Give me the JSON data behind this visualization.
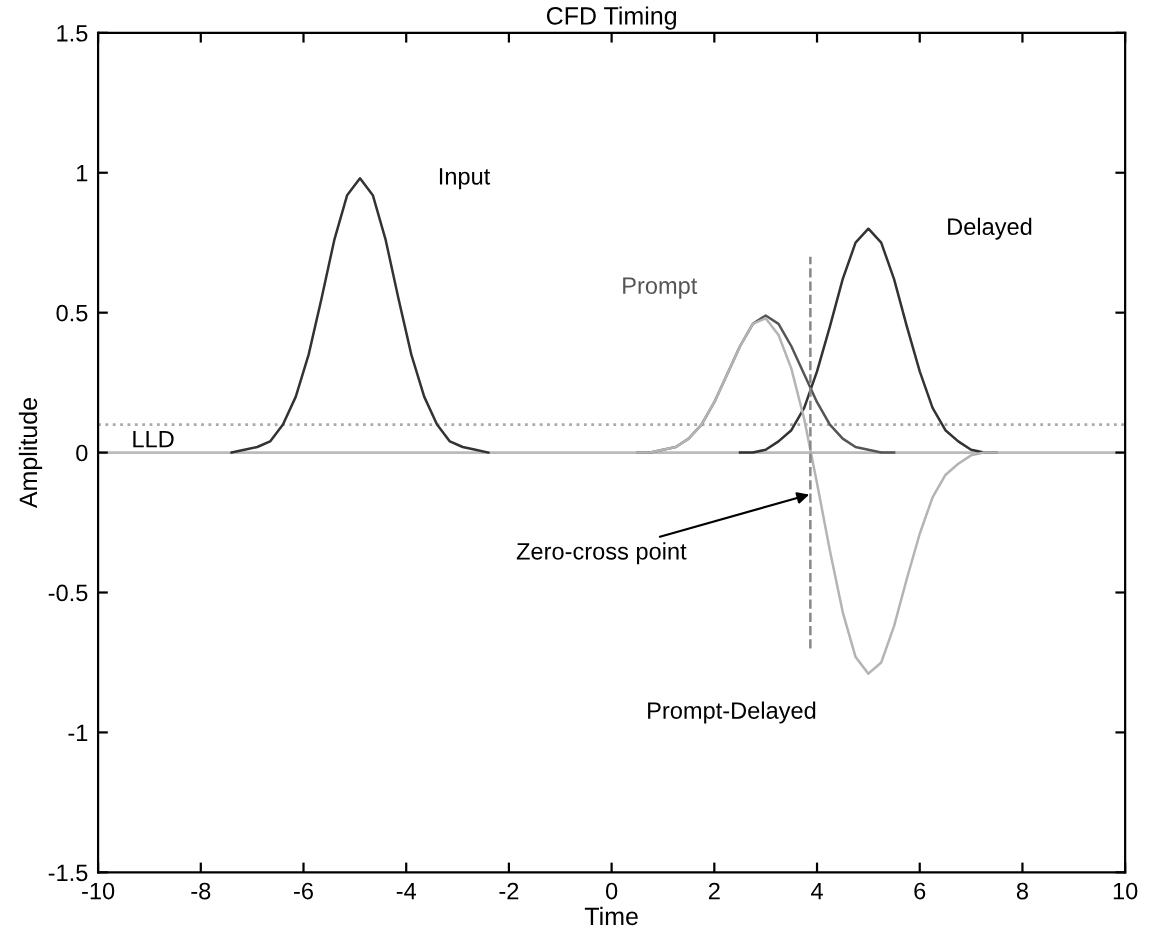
{
  "chart_data": {
    "type": "line",
    "title": "CFD Timing",
    "xlabel": "Time",
    "ylabel": "Amplitude",
    "xlim": [
      -10,
      10
    ],
    "xticks": [
      -10,
      -8,
      -6,
      -4,
      -2,
      0,
      2,
      4,
      6,
      8,
      10
    ],
    "ylim": [
      -1.5,
      1.5
    ],
    "yticks": [
      -1.5,
      -1,
      -0.5,
      0,
      0.5,
      1,
      1.5
    ],
    "grid": false,
    "legend": false,
    "line_style": "solid",
    "marker": "none",
    "series": [
      {
        "name": "Input",
        "color": "#333333",
        "x": [
          -7.4,
          -7.15,
          -6.9,
          -6.65,
          -6.4,
          -6.15,
          -5.9,
          -5.65,
          -5.4,
          -5.15,
          -4.9,
          -4.65,
          -4.4,
          -4.15,
          -3.9,
          -3.65,
          -3.4,
          -3.15,
          -2.9,
          -2.65,
          -2.4
        ],
        "values": [
          0,
          0.01,
          0.02,
          0.04,
          0.1,
          0.2,
          0.35,
          0.55,
          0.76,
          0.92,
          0.98,
          0.92,
          0.76,
          0.55,
          0.35,
          0.2,
          0.1,
          0.04,
          0.02,
          0.01,
          0
        ]
      },
      {
        "name": "Prompt",
        "color": "#555555",
        "x": [
          0.5,
          0.75,
          1.0,
          1.25,
          1.5,
          1.75,
          2.0,
          2.25,
          2.5,
          2.75,
          3.0,
          3.25,
          3.5,
          3.75,
          4.0,
          4.25,
          4.5,
          4.75,
          5.0,
          5.25,
          5.5
        ],
        "values": [
          0,
          0,
          0.01,
          0.02,
          0.05,
          0.1,
          0.18,
          0.28,
          0.38,
          0.46,
          0.49,
          0.46,
          0.38,
          0.28,
          0.18,
          0.1,
          0.05,
          0.02,
          0.01,
          0,
          0
        ]
      },
      {
        "name": "Delayed",
        "color": "#333333",
        "x": [
          2.5,
          2.75,
          3.0,
          3.25,
          3.5,
          3.75,
          4.0,
          4.25,
          4.5,
          4.75,
          5.0,
          5.25,
          5.5,
          5.75,
          6.0,
          6.25,
          6.5,
          6.75,
          7.0,
          7.25,
          7.5
        ],
        "values": [
          0,
          0,
          0.01,
          0.04,
          0.08,
          0.16,
          0.29,
          0.45,
          0.62,
          0.75,
          0.8,
          0.75,
          0.62,
          0.45,
          0.29,
          0.16,
          0.08,
          0.04,
          0.01,
          0,
          0
        ]
      },
      {
        "name": "Prompt-Delayed",
        "color": "#b4b4b4",
        "x": [
          0.5,
          0.75,
          1.0,
          1.25,
          1.5,
          1.75,
          2.0,
          2.25,
          2.5,
          2.75,
          3.0,
          3.25,
          3.5,
          3.75,
          4.0,
          4.25,
          4.5,
          4.75,
          5.0,
          5.25,
          5.5,
          5.75,
          6.0,
          6.25,
          6.5,
          6.75,
          7.0,
          7.25,
          7.5
        ],
        "values": [
          0,
          0,
          0.01,
          0.02,
          0.05,
          0.1,
          0.18,
          0.28,
          0.38,
          0.46,
          0.48,
          0.42,
          0.3,
          0.12,
          -0.11,
          -0.35,
          -0.57,
          -0.73,
          -0.79,
          -0.75,
          -0.62,
          -0.45,
          -0.29,
          -0.16,
          -0.08,
          -0.04,
          -0.01,
          0,
          0
        ]
      },
      {
        "color": "#888888",
        "line_style": "dashed",
        "x": [
          3.87,
          3.87
        ],
        "values": [
          -0.7,
          0.7
        ]
      }
    ],
    "ref_lines": [
      {
        "axis": "y",
        "value": 0.1,
        "label": "LLD",
        "color": "#aaaaaa",
        "line_style": "dotted"
      },
      {
        "axis": "y",
        "value": 0,
        "color": "#bbbbbb",
        "line_style": "solid"
      }
    ],
    "annotations": [
      {
        "text": "Zero-cross point",
        "x": 3.85,
        "y": -0.15
      }
    ]
  }
}
